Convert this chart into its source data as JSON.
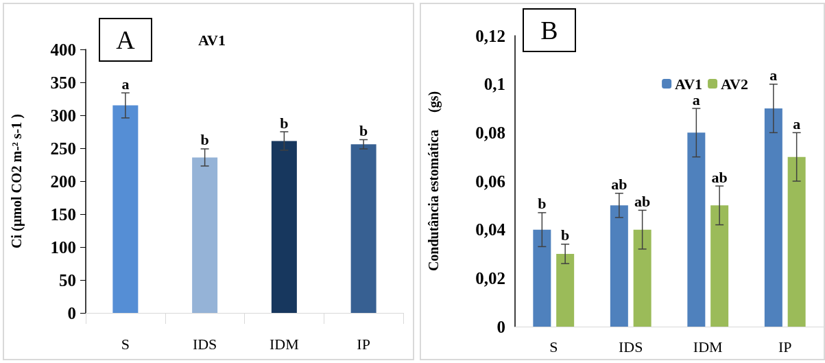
{
  "chart_data": [
    {
      "type": "bar",
      "title": "AV1",
      "ylabel": "Ci (µmol CO2 m-² s-1 )",
      "categories": [
        "S",
        "IDS",
        "IDM",
        "IP"
      ],
      "values": [
        315,
        236,
        261,
        256
      ],
      "colors": [
        "#558ed5",
        "#95b3d7",
        "#17375e",
        "#376092"
      ],
      "errors": [
        19,
        13,
        14,
        7
      ],
      "ylim": [
        0,
        400
      ],
      "yticks": [
        0,
        50,
        100,
        150,
        200,
        250,
        300,
        350,
        400
      ],
      "grid": false,
      "legend": false,
      "annotations": [
        "A",
        "a",
        "b",
        "b",
        "b"
      ]
    },
    {
      "type": "bar",
      "ylabel": "Condutância estomática     (gs)",
      "categories": [
        "S",
        "IDS",
        "IDM",
        "IP"
      ],
      "series": [
        {
          "name": "AV1",
          "color": "#4f81bd",
          "values": [
            0.04,
            0.05,
            0.08,
            0.09
          ],
          "errors": [
            0.007,
            0.005,
            0.01,
            0.01
          ]
        },
        {
          "name": "AV2",
          "color": "#9bbb59",
          "values": [
            0.03,
            0.04,
            0.05,
            0.07
          ],
          "errors": [
            0.004,
            0.008,
            0.008,
            0.01
          ]
        }
      ],
      "ylim": [
        0,
        0.12
      ],
      "yticks": [
        0,
        {
          "value": 0.02,
          "label": "0,02"
        },
        {
          "value": 0.04,
          "label": "0,04"
        },
        {
          "value": 0.06,
          "label": "0,06"
        },
        {
          "value": 0.08,
          "label": "0,08"
        },
        {
          "value": 0.1,
          "label": "0,1"
        },
        {
          "value": 0.12,
          "label": "0,12"
        }
      ],
      "grid": false,
      "legend": "top right",
      "annotations": [
        "B",
        "b",
        "b",
        "ab",
        "ab",
        "a",
        "ab",
        "a",
        "a"
      ]
    }
  ]
}
